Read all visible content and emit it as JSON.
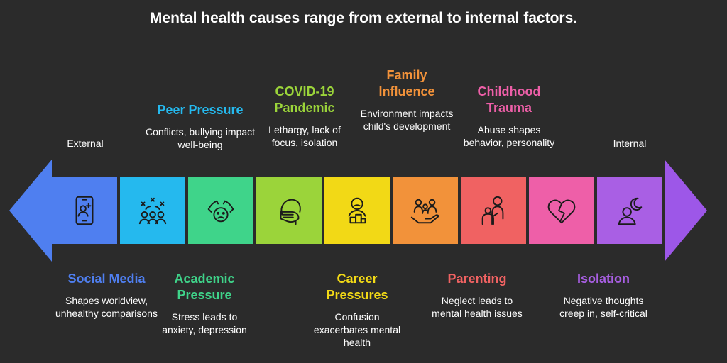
{
  "title": "Mental health causes range from external to internal factors.",
  "scale": {
    "left": "External",
    "right": "Internal"
  },
  "colors": {
    "arrow_left": "#4f7ff0",
    "arrow_right": "#9d57e8"
  },
  "items": [
    {
      "head": "Social Media",
      "desc": "Shapes worldview, unhealthy comparisons",
      "color": "#4f7ff0",
      "position": "below",
      "icon": "smartphone-user-icon"
    },
    {
      "head": "Peer Pressure",
      "desc": "Conflicts, bullying impact well-being",
      "color": "#25b9ee",
      "position": "above",
      "icon": "group-conflict-icon"
    },
    {
      "head": "Academic Pressure",
      "desc": "Stress leads to anxiety, depression",
      "color": "#3fd48a",
      "position": "below",
      "icon": "stressed-head-icon"
    },
    {
      "head": "COVID-19 Pandemic",
      "desc": "Lethargy, lack of focus, isolation",
      "color": "#9bd43a",
      "position": "above",
      "icon": "masked-face-icon"
    },
    {
      "head": "Career Pressures",
      "desc": "Confusion exacerbates mental health",
      "color": "#f2d916",
      "position": "below",
      "icon": "worried-worker-icon"
    },
    {
      "head": "Family Influence",
      "desc": "Environment impacts child's development",
      "color": "#f2923a",
      "position": "above",
      "icon": "family-hand-icon"
    },
    {
      "head": "Parenting",
      "desc": "Neglect leads to mental health issues",
      "color": "#f06262",
      "position": "below",
      "icon": "parent-child-icon"
    },
    {
      "head": "Childhood Trauma",
      "desc": "Abuse shapes behavior, personality",
      "color": "#ee5fa8",
      "position": "above",
      "icon": "broken-heart-icon"
    },
    {
      "head": "Isolation",
      "desc": "Negative thoughts creep in, self-critical",
      "color": "#a95fe4",
      "position": "below",
      "icon": "person-moon-icon"
    }
  ]
}
